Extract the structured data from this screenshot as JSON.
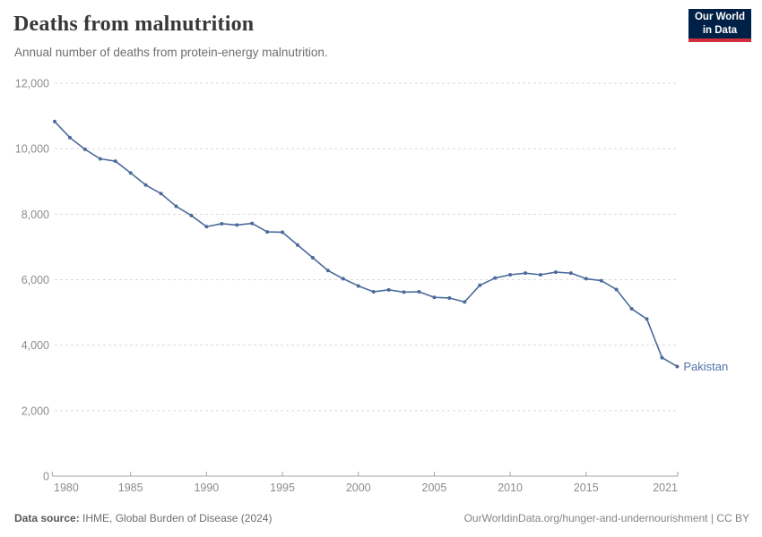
{
  "header": {
    "title": "Deaths from malnutrition",
    "subtitle": "Annual number of deaths from protein-energy malnutrition.",
    "logo": {
      "line1": "Our World",
      "line2": "in Data"
    }
  },
  "footer": {
    "source_label": "Data source:",
    "source_text": " IHME, Global Burden of Disease (2024)",
    "attribution_link": "OurWorldinData.org/hunger-and-undernourishment",
    "separator": " | ",
    "license": "CC BY"
  },
  "colors": {
    "line": "#4c6a9c",
    "entity_label": "#5372a8",
    "gridline": "#dadada",
    "axis_line": "#a3a3a3",
    "tick_text": "#8c8c8c",
    "logo_bg": "#002147",
    "logo_red": "#d0303d"
  },
  "chart_data": {
    "type": "line",
    "title": "Deaths from malnutrition",
    "subtitle": "Annual number of deaths from protein-energy malnutrition.",
    "xlabel": "",
    "ylabel": "",
    "xlim": [
      1980,
      2021
    ],
    "ylim": [
      0,
      12000
    ],
    "grid": "horizontal-dashed",
    "legend_position": "end-of-line-label",
    "x_ticks": [
      1980,
      1985,
      1990,
      1995,
      2000,
      2005,
      2010,
      2015,
      2021
    ],
    "y_ticks": [
      0,
      2000,
      4000,
      6000,
      8000,
      10000,
      12000
    ],
    "entity_label": "Pakistan",
    "series": [
      {
        "name": "Pakistan",
        "x": [
          1980,
          1981,
          1982,
          1983,
          1984,
          1985,
          1986,
          1987,
          1988,
          1989,
          1990,
          1991,
          1992,
          1993,
          1994,
          1995,
          1996,
          1997,
          1998,
          1999,
          2000,
          2001,
          2002,
          2003,
          2004,
          2005,
          2006,
          2007,
          2008,
          2009,
          2010,
          2011,
          2012,
          2013,
          2014,
          2015,
          2016,
          2017,
          2018,
          2019,
          2020,
          2021
        ],
        "values": [
          10830,
          10340,
          9980,
          9690,
          9620,
          9260,
          8890,
          8630,
          8240,
          7960,
          7620,
          7710,
          7670,
          7720,
          7460,
          7450,
          7060,
          6670,
          6280,
          6030,
          5810,
          5630,
          5690,
          5620,
          5630,
          5460,
          5440,
          5320,
          5830,
          6050,
          6150,
          6200,
          6150,
          6230,
          6200,
          6030,
          5970,
          5700,
          5110,
          4800,
          3620,
          3350
        ]
      }
    ]
  }
}
